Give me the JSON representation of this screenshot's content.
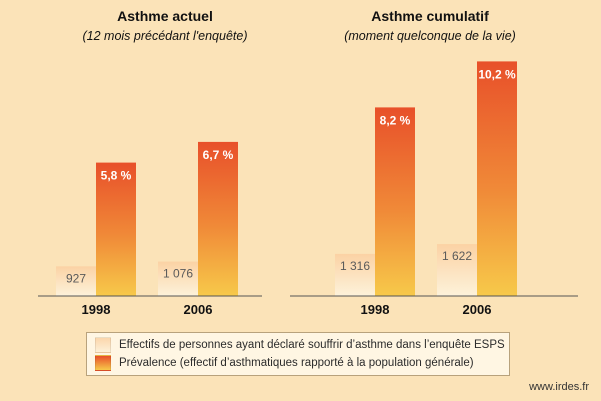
{
  "chart_data": {
    "type": "bar",
    "panels": [
      {
        "title": "Asthme actuel",
        "subtitle": "(12 mois précédant l'enquête)",
        "categories": [
          "1998",
          "2006"
        ],
        "series": [
          {
            "name": "Effectifs",
            "values": [
              927,
              1076
            ],
            "labels": [
              "927",
              "1 076"
            ]
          },
          {
            "name": "Prévalence",
            "values": [
              5.8,
              6.7
            ],
            "labels": [
              "5,8 %",
              "6,7 %"
            ]
          }
        ]
      },
      {
        "title": "Asthme cumulatif",
        "subtitle": "(moment quelconque de la vie)",
        "categories": [
          "1998",
          "2006"
        ],
        "series": [
          {
            "name": "Effectifs",
            "values": [
              1316,
              1622
            ],
            "labels": [
              "1 316",
              "1 622"
            ]
          },
          {
            "name": "Prévalence",
            "values": [
              8.2,
              10.2
            ],
            "labels": [
              "8,2 %",
              "10,2 %"
            ]
          }
        ]
      }
    ],
    "legend": {
      "placement": "bottom",
      "entries": [
        "Effectifs de personnes ayant déclaré souffrir d’asthme dans l’enquête ESPS",
        "Prévalence (effectif d’asthmatiques rapporté à la population générale)"
      ]
    },
    "grid": false
  },
  "colors": {
    "background": "#fbe3b8",
    "count_bar_top": "#fbd6ac",
    "count_bar_bottom": "#fdf1d8",
    "prevalence_bar_top": "#e8502a",
    "prevalence_bar_bottom": "#f7c94a"
  },
  "source": "www.irdes.fr"
}
